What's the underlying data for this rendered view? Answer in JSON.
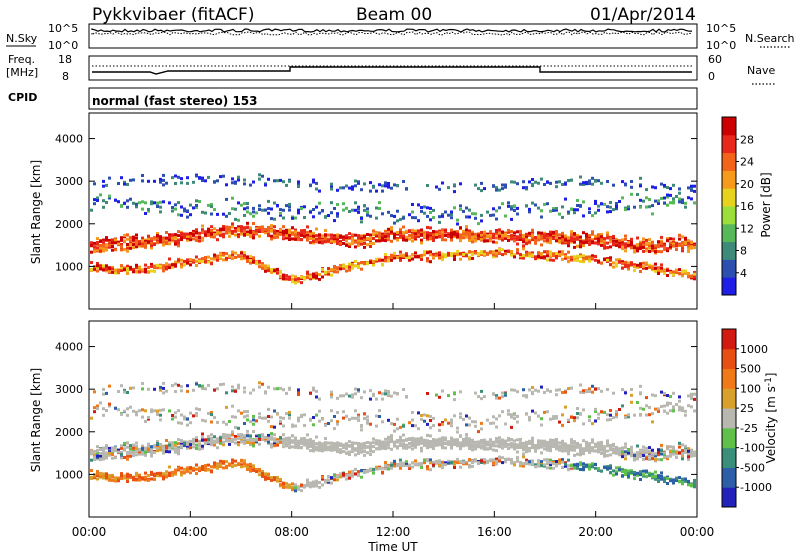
{
  "header": {
    "station": "Pykkvibaer (fitACF)",
    "beam": "Beam 00",
    "date": "01/Apr/2014"
  },
  "top_panels": {
    "nsky_label": "N.Sky",
    "nsearch_label": "N.Search",
    "noise_ticks": [
      "10^5",
      "10^0"
    ],
    "freq_label_1": "Freq.",
    "freq_label_2": "[MHz]",
    "freq_ticks": [
      "18",
      "8"
    ],
    "nave_label": "Nave",
    "nave_ticks": [
      "60",
      "0"
    ],
    "cpid_label": "CPID",
    "cpid_text": "normal (fast stereo) 153"
  },
  "colors": {
    "power_scale": [
      "#1e1ee6",
      "#2c4fb0",
      "#3d8a78",
      "#57b85a",
      "#9be03a",
      "#e7d21e",
      "#f59a1a",
      "#f2641a",
      "#e8281a",
      "#cc0000"
    ],
    "velocity_scale": [
      "#2222bb",
      "#2c5fa8",
      "#3a8f7a",
      "#5fc04a",
      "#b8b8b0",
      "#d9a12c",
      "#f07a18",
      "#e84f12",
      "#d21a10"
    ]
  },
  "chart_data": [
    {
      "type": "heatmap",
      "title": "",
      "xlabel": "",
      "ylabel": "Slant Range [km]",
      "xlim": [
        "00:00",
        "24:00"
      ],
      "ylim": [
        0,
        4600
      ],
      "y_ticks": [
        1000,
        2000,
        3000,
        4000
      ],
      "colorbar": {
        "label": "Power [dB]",
        "ticks": [
          "28",
          "24",
          "20",
          "16",
          "12",
          "8",
          "4"
        ]
      },
      "scatter_layers_km": [
        {
          "name": "near",
          "center": [
            1000,
            950,
            1150,
            1300,
            700,
            1000,
            1250,
            1300,
            1350,
            1300,
            1200,
            1000,
            800
          ],
          "spread": 160
        },
        {
          "name": "main",
          "center": [
            1500,
            1600,
            1750,
            1900,
            1800,
            1650,
            1750,
            1800,
            1750,
            1700,
            1650,
            1500,
            1600
          ],
          "spread": 230
        },
        {
          "name": "far",
          "center": [
            2600,
            2500,
            2400,
            2300,
            2350,
            2300,
            2250,
            2250,
            2300,
            2400,
            2450,
            2500,
            2600
          ],
          "spread": 350
        },
        {
          "name": "top",
          "center": [
            3000,
            3050,
            3100,
            3050,
            3000,
            2900,
            2900,
            2950,
            2900,
            3000,
            3050,
            2900,
            2800
          ],
          "spread": 200
        }
      ]
    },
    {
      "type": "heatmap",
      "title": "",
      "xlabel": "Time UT",
      "ylabel": "Slant Range [km]",
      "xlim": [
        "00:00",
        "24:00"
      ],
      "ylim": [
        0,
        4600
      ],
      "y_ticks": [
        1000,
        2000,
        3000,
        4000
      ],
      "x_ticks": [
        "00:00",
        "04:00",
        "08:00",
        "12:00",
        "16:00",
        "20:00",
        "00:00"
      ],
      "colorbar": {
        "label": "Velocity [m s^-1]",
        "ticks": [
          "1000",
          "500",
          "100",
          "25",
          "-25",
          "-100",
          "-500",
          "-1000"
        ]
      }
    }
  ]
}
